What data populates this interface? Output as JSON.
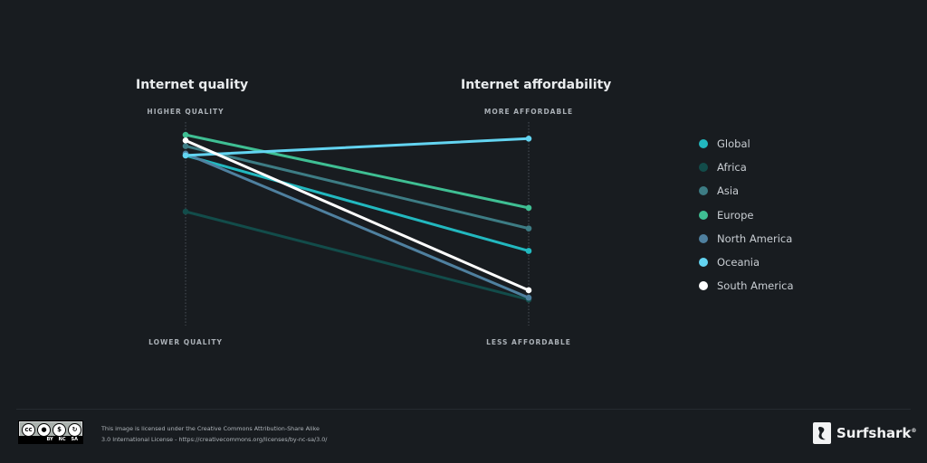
{
  "titles": {
    "left": "Internet quality",
    "right": "Internet affordability"
  },
  "axis_labels": {
    "left_top": "HIGHER QUALITY",
    "left_bottom": "LOWER QUALITY",
    "right_top": "MORE AFFORDABLE",
    "right_bottom": "LESS AFFORDABLE"
  },
  "chart_data": {
    "type": "line",
    "x": [
      "Internet quality",
      "Internet affordability"
    ],
    "ylim": [
      0,
      100
    ],
    "grid": false,
    "legend_position": "right",
    "series": [
      {
        "name": "Global",
        "color": "#22b8bf",
        "values": [
          87,
          36
        ]
      },
      {
        "name": "Africa",
        "color": "#124c4a",
        "values": [
          57,
          10
        ]
      },
      {
        "name": "Asia",
        "color": "#3d7c84",
        "values": [
          92,
          48
        ]
      },
      {
        "name": "Europe",
        "color": "#3fbf93",
        "values": [
          98,
          59
        ]
      },
      {
        "name": "North America",
        "color": "#4f809f",
        "values": [
          88,
          11
        ]
      },
      {
        "name": "Oceania",
        "color": "#63d4f1",
        "values": [
          87,
          96
        ]
      },
      {
        "name": "South America",
        "color": "#ffffff",
        "values": [
          95,
          15
        ]
      }
    ]
  },
  "license": {
    "cc_tags": [
      "BY",
      "NC",
      "SA"
    ],
    "text_line1": "This image is licensed under the Creative Commons Attribution-Share Alike",
    "text_line2": "3.0 International License - https://creativecommons.org/licenses/by-nc-sa/3.0/"
  },
  "brand": {
    "name": "Surfshark",
    "mark": "®"
  }
}
